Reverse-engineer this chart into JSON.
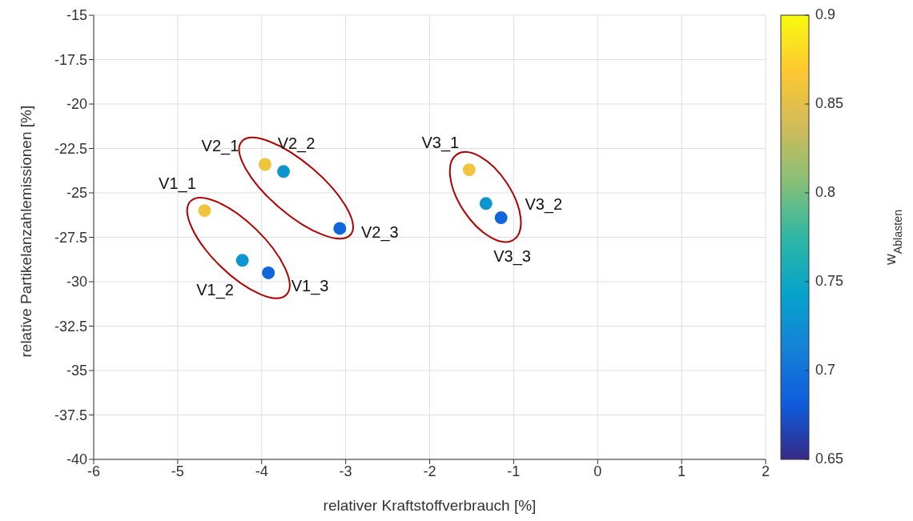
{
  "chart_data": {
    "type": "scatter",
    "xlabel": "relativer Kraftstoffverbrauch [%]",
    "ylabel": "relative Partikelanzahlemissionen [%]",
    "clabel": "w$_{Ablasten}$",
    "x": [
      -4.68,
      -4.23,
      -3.92,
      -3.96,
      -3.74,
      -3.07,
      -1.53,
      -1.33,
      -1.15
    ],
    "values": [
      -26.0,
      -28.8,
      -29.5,
      -23.4,
      -23.8,
      -27.0,
      -23.7,
      -25.6,
      -26.4
    ],
    "cvalues": [
      0.86,
      0.73,
      0.69,
      0.86,
      0.73,
      0.69,
      0.86,
      0.73,
      0.69
    ],
    "clim": [
      0.65,
      0.9
    ],
    "cticks": [
      0.65,
      0.7,
      0.75,
      0.8,
      0.85,
      0.9
    ],
    "xlim": [
      -6,
      2
    ],
    "xticks": [
      -6,
      -5,
      -4,
      -3,
      -2,
      -1,
      0,
      1,
      2
    ],
    "ylim": [
      -40,
      -15
    ],
    "yticks": [
      -40,
      -37.5,
      -35,
      -32.5,
      -30,
      -27.5,
      -25,
      -22.5,
      -20,
      -17.5,
      -15
    ],
    "grid": true,
    "marker": "circle",
    "annotations": [
      {
        "text": "V1_1",
        "x": -4.68,
        "y": -26.0
      },
      {
        "text": "V1_2",
        "x": -4.23,
        "y": -28.8
      },
      {
        "text": "V1_3",
        "x": -3.92,
        "y": -29.5
      },
      {
        "text": "V2_1",
        "x": -3.96,
        "y": -23.4
      },
      {
        "text": "V2_2",
        "x": -3.74,
        "y": -23.8
      },
      {
        "text": "V2_3",
        "x": -3.07,
        "y": -27.0
      },
      {
        "text": "V3_1",
        "x": -1.53,
        "y": -23.7
      },
      {
        "text": "V3_2",
        "x": -1.33,
        "y": -25.6
      },
      {
        "text": "V3_3",
        "x": -1.15,
        "y": -26.4
      }
    ]
  }
}
